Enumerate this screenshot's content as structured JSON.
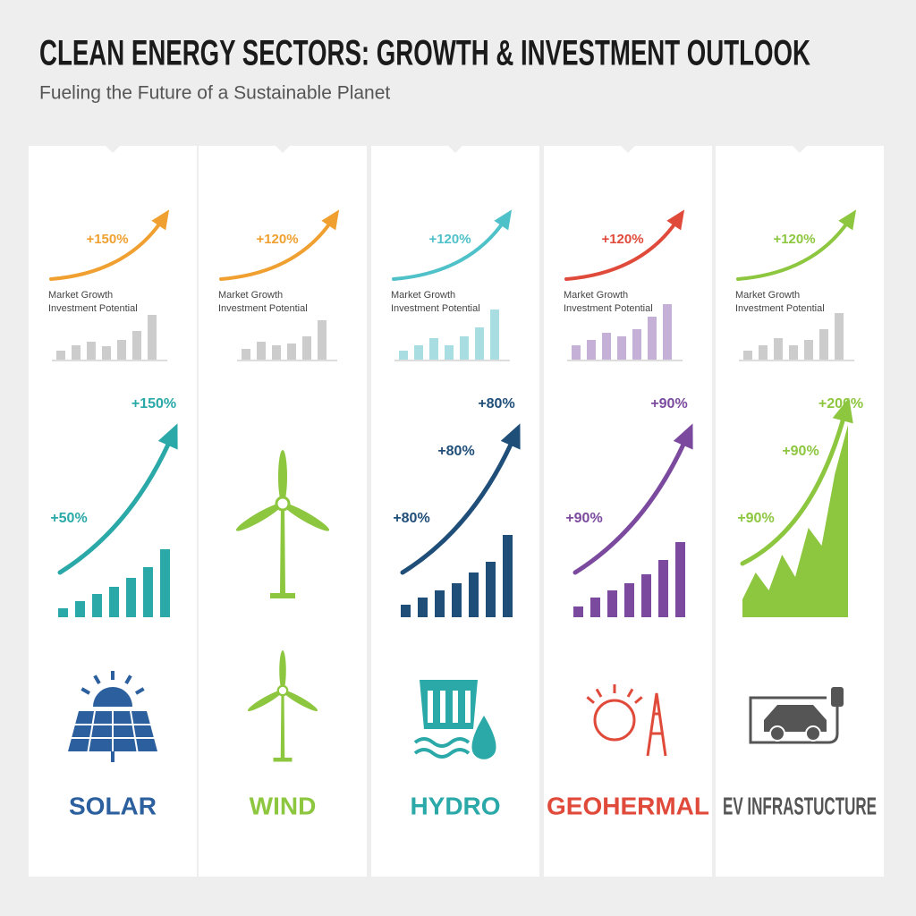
{
  "title": "CLEAN ENERGY SECTORS: GROWTH & INVESTMENT OUTLOOK",
  "subtitle": "Fueling the Future of a Sustainable Planet",
  "columns": [
    {
      "name": "SOLAR",
      "name_color": "#2b5f9e",
      "top_label": "+150%",
      "top_color": "#f0a030",
      "growth_label": "Market Growth",
      "investment_label": "Investment Potential",
      "mini_bars": [
        10,
        16,
        20,
        15,
        22,
        32,
        50
      ],
      "mini_color": "#cccccc",
      "chart_style": "bars",
      "chart_color": "#2aa9a8",
      "chart_labels": [
        "+50%",
        "+150%"
      ],
      "bars": [
        10,
        18,
        26,
        34,
        44,
        56,
        76
      ]
    },
    {
      "name": "WIND",
      "name_color": "#8dc63f",
      "top_label": "+120%",
      "top_color": "#f0a030",
      "growth_label": "Market Growth",
      "investment_label": "Investment Potential",
      "mini_bars": [
        12,
        20,
        16,
        18,
        26,
        44
      ],
      "mini_color": "#cccccc",
      "chart_style": "turbine",
      "chart_color": "#8dc63f"
    },
    {
      "name": "HYDRO",
      "name_color": "#2aa9a8",
      "top_label": "+120%",
      "top_color": "#4fc1c9",
      "growth_label": "Market Growth",
      "investment_label": "Investment Potential",
      "mini_bars": [
        10,
        16,
        24,
        16,
        26,
        36,
        56
      ],
      "mini_color": "#a8dde2",
      "chart_style": "bars",
      "chart_color": "#1f4e79",
      "chart_labels": [
        "+80%",
        "+80%",
        "+80%"
      ],
      "bars": [
        14,
        22,
        30,
        38,
        50,
        62,
        92
      ]
    },
    {
      "name": "GEOHERMAL",
      "name_color": "#e04a3a",
      "top_label": "+120%",
      "top_color": "#e04a3a",
      "growth_label": "Market Growth",
      "investment_label": "Investment Potential",
      "mini_bars": [
        16,
        22,
        30,
        26,
        34,
        48,
        62
      ],
      "mini_color": "#c5b0d8",
      "chart_style": "bars",
      "chart_color": "#7b4a9e",
      "chart_labels": [
        "+90%",
        "+90%"
      ],
      "bars": [
        12,
        22,
        30,
        38,
        48,
        64,
        84
      ]
    },
    {
      "name": "EV INFRASTUCTURE",
      "name_color": "#555555",
      "top_label": "+120%",
      "top_color": "#8dc63f",
      "growth_label": "Market Growth",
      "investment_label": "Investment Potential",
      "mini_bars": [
        10,
        16,
        24,
        16,
        22,
        34,
        52
      ],
      "mini_color": "#cccccc",
      "chart_style": "area",
      "chart_color": "#8dc63f",
      "chart_labels": [
        "+90%",
        "+90%",
        "+200%"
      ],
      "bars": [
        20,
        50,
        30,
        70,
        45,
        100,
        80,
        160,
        215
      ]
    }
  ]
}
